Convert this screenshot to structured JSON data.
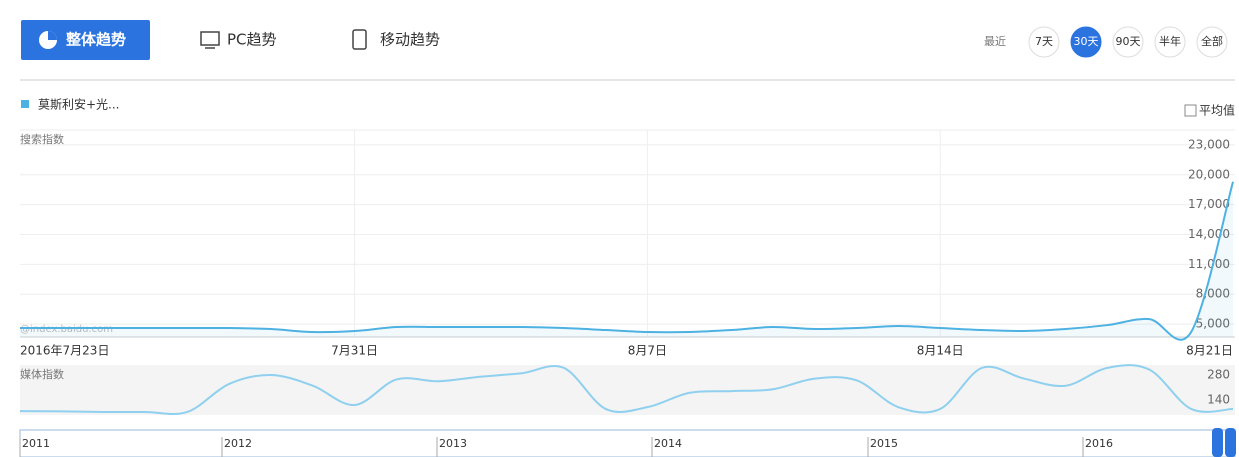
{
  "tabs": {
    "overall": "整体趋势",
    "pc": "PC趋势",
    "mobile": "移动趋势"
  },
  "range": {
    "label": "最近",
    "options": [
      "7天",
      "30天",
      "90天",
      "半年",
      "全部"
    ],
    "active": 1
  },
  "legend": "莫斯利安+光...",
  "average_toggle": "平均值",
  "watermark": "@index.baidu.com",
  "chart_data": [
    {
      "type": "line",
      "axis_label": "搜索指数",
      "categories": [
        "2016年7月23日",
        null,
        null,
        null,
        null,
        null,
        null,
        null,
        "7月31日",
        null,
        null,
        null,
        null,
        null,
        null,
        "8月7日",
        null,
        null,
        null,
        null,
        null,
        null,
        "8月14日",
        null,
        null,
        null,
        null,
        null,
        null,
        "8月21日"
      ],
      "series": [
        {
          "name": "莫斯利安+光...",
          "color": "#4db1e2",
          "values": [
            4600,
            4600,
            4600,
            4600,
            4600,
            4600,
            4500,
            4200,
            4300,
            4700,
            4700,
            4700,
            4700,
            4600,
            4400,
            4200,
            4200,
            4400,
            4700,
            4500,
            4600,
            4800,
            4600,
            4400,
            4300,
            4500,
            4900,
            5500,
            4200,
            19300
          ]
        }
      ],
      "ylim": [
        3700,
        24500
      ],
      "yticks": [
        {
          "value": 5000,
          "label": "5,000"
        },
        {
          "value": 8000,
          "label": "8,000"
        },
        {
          "value": 11000,
          "label": "11,000"
        },
        {
          "value": 14000,
          "label": "14,000"
        },
        {
          "value": 17000,
          "label": "17,000"
        },
        {
          "value": 20000,
          "label": "20,000"
        },
        {
          "value": 23000,
          "label": "23,000"
        }
      ],
      "grid": true
    },
    {
      "type": "line",
      "axis_label": "媒体指数",
      "series": [
        {
          "name": "媒体指数",
          "color": "#8fd0ef",
          "values": [
            78,
            76,
            73,
            73,
            73,
            230,
            280,
            220,
            112,
            255,
            245,
            270,
            290,
            320,
            90,
            100,
            180,
            190,
            200,
            260,
            250,
            100,
            90,
            320,
            260,
            220,
            320,
            310,
            90,
            90
          ]
        }
      ],
      "ylim": [
        56,
        336
      ],
      "yticks": [
        140,
        280
      ]
    }
  ],
  "timeline": {
    "years": [
      "2011",
      "2012",
      "2013",
      "2014",
      "2015",
      "2016"
    ]
  }
}
